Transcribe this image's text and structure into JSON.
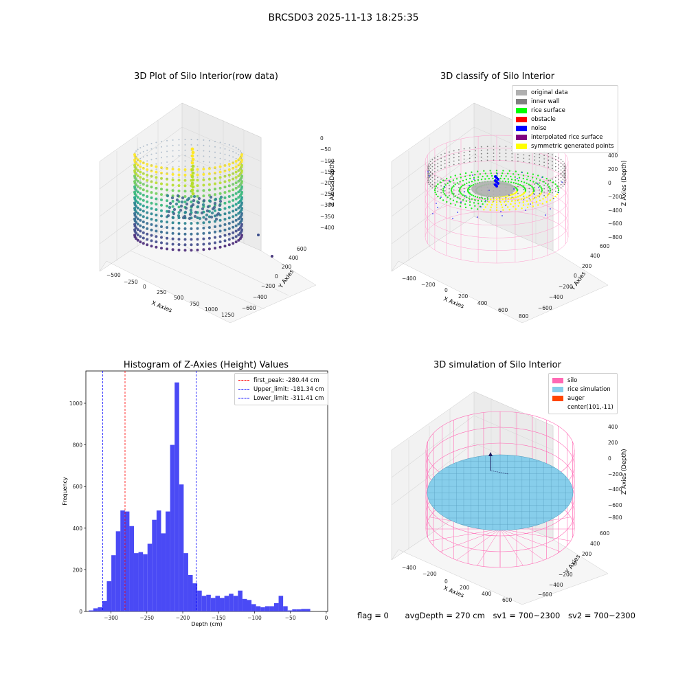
{
  "figure": {
    "title": "BRCSD03 2025-11-13 18:25:35"
  },
  "panels": {
    "raw": {
      "title": "3D Plot of Silo Interior(row data)",
      "xlabel": "X Axies",
      "ylabel": "Y Axies",
      "zlabel": "Z Axies (Depth)",
      "x_ticks": [
        "−500",
        "−250",
        "0",
        "250",
        "500",
        "750",
        "1000",
        "1250"
      ],
      "y_ticks": [
        "600",
        "400",
        "200",
        "0",
        "−200",
        "−400",
        "−600"
      ],
      "z_ticks": [
        "0",
        "−50",
        "−100",
        "−150",
        "−200",
        "−250",
        "−300",
        "−350",
        "−400"
      ]
    },
    "classify": {
      "title": "3D classify of Silo Interior",
      "xlabel": "X Axies",
      "ylabel": "Y Axies",
      "zlabel": "Z Axies (Depth)",
      "x_ticks": [
        "−400",
        "−200",
        "0",
        "200",
        "400",
        "600",
        "800"
      ],
      "y_ticks": [
        "600",
        "400",
        "200",
        "0",
        "−200",
        "−400",
        "−600"
      ],
      "z_ticks": [
        "400",
        "200",
        "0",
        "−200",
        "−400",
        "−600",
        "−800"
      ],
      "legend": [
        {
          "label": "original data",
          "color": "#b0b0b0"
        },
        {
          "label": "inner wall",
          "color": "#808080"
        },
        {
          "label": "rice surface",
          "color": "#00ff00"
        },
        {
          "label": "obstacle",
          "color": "#ff0000"
        },
        {
          "label": "noise",
          "color": "#0000ff"
        },
        {
          "label": "interpolated rice surface",
          "color": "#800080"
        },
        {
          "label": "symmetric generated points",
          "color": "#ffff00"
        }
      ]
    },
    "simulation": {
      "title": "3D simulation of Silo Interior",
      "xlabel": "X Axies",
      "ylabel": "Y Axies",
      "zlabel": "Z Axies (Depth)",
      "x_ticks": [
        "−400",
        "−200",
        "0",
        "200",
        "400",
        "600"
      ],
      "y_ticks": [
        "600",
        "400",
        "200",
        "0",
        "−200",
        "−400",
        "−600"
      ],
      "z_ticks": [
        "400",
        "200",
        "0",
        "−200",
        "−400",
        "−600",
        "−800"
      ],
      "legend": [
        {
          "label": "silo",
          "color": "#ff69b4"
        },
        {
          "label": "rice simulation",
          "color": "#87ceeb"
        },
        {
          "label": "auger",
          "color": "#ff4500"
        },
        {
          "label": "center(101,-11)",
          "color": ""
        }
      ]
    }
  },
  "chart_data": [
    {
      "type": "bar",
      "title": "Histogram of Z-Axies (Height) Values",
      "xlabel": "Depth (cm)",
      "ylabel": "Frequency",
      "xlim": [
        -335,
        2
      ],
      "ylim": [
        0,
        1155
      ],
      "x_ticks": [
        -300,
        -250,
        -200,
        -150,
        -100,
        -50,
        0
      ],
      "y_ticks": [
        0,
        200,
        400,
        600,
        800,
        1000
      ],
      "bin_start": -331,
      "bin_width": 6.3,
      "values": [
        5,
        15,
        20,
        50,
        145,
        270,
        385,
        485,
        480,
        410,
        280,
        285,
        275,
        325,
        440,
        485,
        375,
        480,
        800,
        1100,
        610,
        280,
        175,
        135,
        100,
        75,
        80,
        65,
        75,
        65,
        75,
        85,
        75,
        100,
        60,
        55,
        35,
        25,
        20,
        25,
        25,
        40,
        75,
        25,
        5,
        10,
        10,
        12,
        12
      ],
      "bar_color": "#4a4af5",
      "lines": [
        {
          "label": "first_peak: -280.44 cm",
          "x": -280.44,
          "color": "#ff0000"
        },
        {
          "label": "Upper_limit: -181.34 cm",
          "x": -181.34,
          "color": "#0000ff"
        },
        {
          "label": "Lower_limit: -311.41 cm",
          "x": -311.41,
          "color": "#0000ff"
        }
      ]
    }
  ],
  "status": {
    "flag": "flag = 0",
    "avg_depth": "avgDepth = 270 cm",
    "sv1": "sv1 = 700~2300",
    "sv2": "sv2 = 700~2300"
  }
}
